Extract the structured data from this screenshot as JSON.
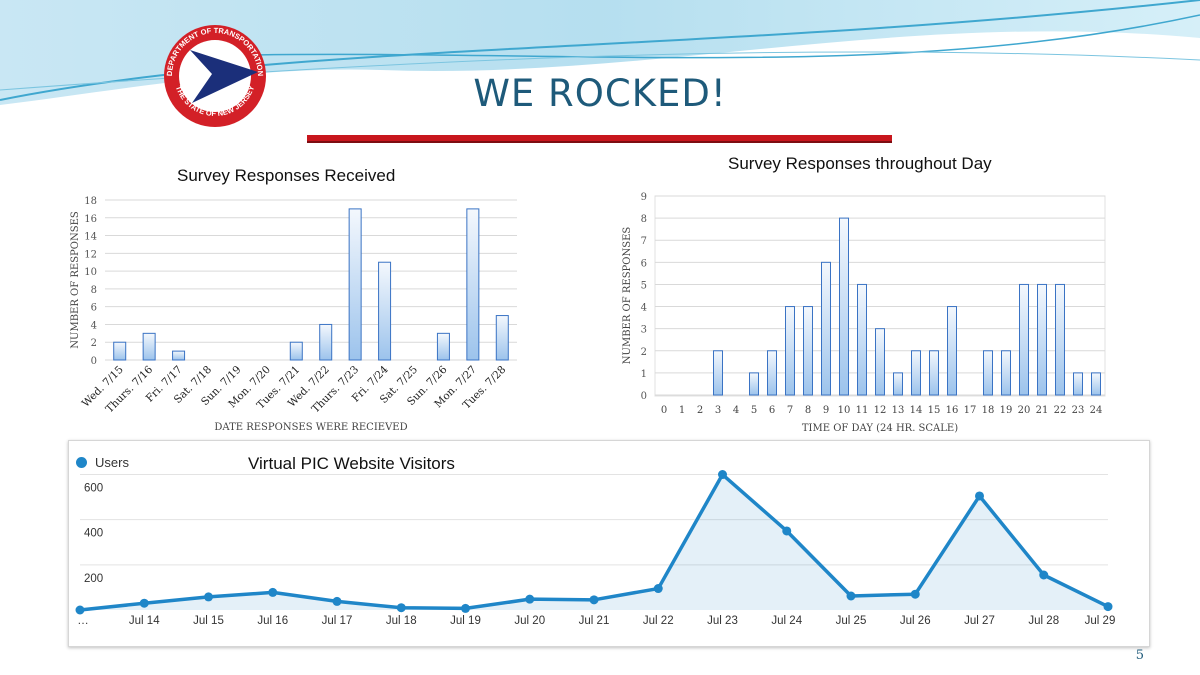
{
  "slide": {
    "title": "WE ROCKED!",
    "page_number": "5",
    "logo_text_top": "DEPARTMENT OF TRANSPORTATION",
    "logo_text_bottom": "THE STATE OF NEW JERSEY",
    "accent_color": "#c8161d",
    "title_color": "#1e5a7a"
  },
  "chart_data": [
    {
      "type": "bar",
      "title": "Survey Responses Received",
      "xlabel": "DATE RESPONSES WERE RECIEVED",
      "ylabel": "NUMBER OF RESPONSES",
      "categories": [
        "Wed. 7/15",
        "Thurs. 7/16",
        "Fri. 7/17",
        "Sat. 7/18",
        "Sun. 7/19",
        "Mon. 7/20",
        "Tues. 7/21",
        "Wed. 7/22",
        "Thurs. 7/23",
        "Fri. 7/24",
        "Sat. 7/25",
        "Sun. 7/26",
        "Mon. 7/27",
        "Tues. 7/28"
      ],
      "values": [
        2,
        3,
        1,
        0,
        0,
        0,
        2,
        4,
        17,
        11,
        0,
        3,
        17,
        5
      ],
      "ylim": [
        0,
        18
      ],
      "yticks": [
        0,
        2,
        4,
        6,
        8,
        10,
        12,
        14,
        16,
        18
      ],
      "grid": true
    },
    {
      "type": "bar",
      "title": "Survey Responses throughout Day",
      "xlabel": "TIME OF DAY (24 HR. SCALE)",
      "ylabel": "NUMBER OF RESPONSES",
      "categories": [
        "0",
        "1",
        "2",
        "3",
        "4",
        "5",
        "6",
        "7",
        "8",
        "9",
        "10",
        "11",
        "12",
        "13",
        "14",
        "15",
        "16",
        "17",
        "18",
        "19",
        "20",
        "21",
        "22",
        "23",
        "24"
      ],
      "values": [
        0,
        0,
        0,
        2,
        0,
        1,
        2,
        4,
        4,
        6,
        8,
        5,
        3,
        1,
        2,
        2,
        4,
        0,
        2,
        2,
        5,
        5,
        5,
        1,
        1
      ],
      "ylim": [
        0,
        9
      ],
      "yticks": [
        0,
        1,
        2,
        3,
        4,
        5,
        6,
        7,
        8,
        9
      ],
      "grid": true
    },
    {
      "type": "area",
      "title": "Virtual PIC Website Visitors",
      "legend": "Users",
      "legend_position": "top-left",
      "categories": [
        "…",
        "Jul 14",
        "Jul 15",
        "Jul 16",
        "Jul 17",
        "Jul 18",
        "Jul 19",
        "Jul 20",
        "Jul 21",
        "Jul 22",
        "Jul 23",
        "Jul 24",
        "Jul 25",
        "Jul 26",
        "Jul 27",
        "Jul 28",
        "Jul 29"
      ],
      "values": [
        0,
        30,
        58,
        78,
        38,
        10,
        7,
        48,
        45,
        95,
        600,
        350,
        62,
        70,
        505,
        155,
        15
      ],
      "ylim": [
        0,
        620
      ],
      "yticks": [
        200,
        400,
        600
      ],
      "grid": true,
      "color": "#1f86c8"
    }
  ]
}
